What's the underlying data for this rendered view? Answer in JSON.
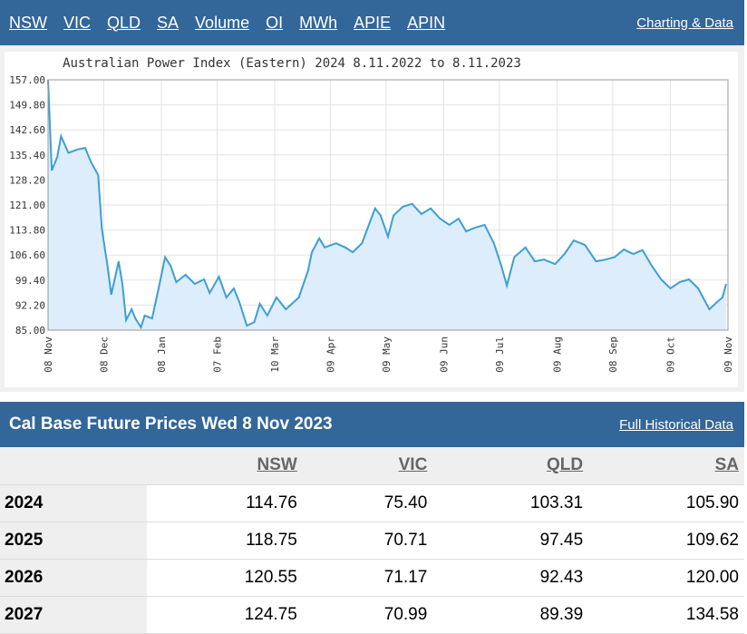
{
  "nav": {
    "links": [
      "NSW",
      "VIC",
      "QLD",
      "SA",
      "Volume",
      "OI",
      "MWh",
      "APIE",
      "APIN"
    ],
    "right": "Charting & Data"
  },
  "chart_data": {
    "type": "line",
    "title": "Australian Power Index (Eastern) 2024 8.11.2022 to 8.11.2023",
    "x": [
      0,
      2,
      5,
      7,
      11,
      16,
      20,
      23,
      27,
      29,
      32,
      34,
      38,
      40,
      42,
      45,
      47,
      50,
      52,
      56,
      60,
      63,
      66,
      69,
      74,
      79,
      84,
      87,
      92,
      96,
      100,
      103,
      107,
      111,
      114,
      118,
      123,
      128,
      135,
      140,
      142,
      146,
      149,
      155,
      160,
      164,
      169,
      176,
      179,
      183,
      186,
      191,
      196,
      201,
      206,
      211,
      216,
      221,
      225,
      230,
      235,
      240,
      244,
      247,
      251,
      257,
      262,
      267,
      273,
      278,
      283,
      289,
      295,
      300,
      305,
      310,
      315,
      320,
      325,
      330,
      335,
      340,
      345,
      350,
      356,
      360,
      363,
      365
    ],
    "series": [
      {
        "color": "#3d9fd4",
        "fill": "#ddedfb",
        "values": [
          157,
          130.9,
          134.8,
          140.8,
          136,
          137,
          137.4,
          133.5,
          129.6,
          114,
          103.5,
          95.2,
          104.8,
          98.3,
          87.9,
          91,
          88.4,
          85.8,
          89.2,
          88.4,
          98.3,
          106,
          103.5,
          98.8,
          100.9,
          98.3,
          99.6,
          95.7,
          100.4,
          94.4,
          97,
          93,
          86.3,
          87.3,
          92.6,
          89.2,
          94.4,
          91,
          94.4,
          102.2,
          107.4,
          111.4,
          108.8,
          110,
          108.8,
          107.4,
          110,
          120,
          118,
          111.9,
          118,
          120.5,
          121.3,
          118.4,
          120,
          117.1,
          115.3,
          117.1,
          113.4,
          114.5,
          115.3,
          110,
          103.5,
          97.8,
          106,
          108.8,
          104.8,
          105.3,
          104,
          106.9,
          110.8,
          109.5,
          104.8,
          105.3,
          106,
          108.2,
          106.9,
          108,
          103.5,
          99.6,
          97,
          98.8,
          99.6,
          97,
          91,
          93,
          94.4,
          98.3
        ]
      }
    ],
    "xlim": [
      0,
      366
    ],
    "xticks": [
      {
        "value": 0,
        "label": "08 Nov"
      },
      {
        "value": 30,
        "label": "08 Dec"
      },
      {
        "value": 61,
        "label": "08 Jan"
      },
      {
        "value": 91,
        "label": "07 Feb"
      },
      {
        "value": 122,
        "label": "10 Mar"
      },
      {
        "value": 152,
        "label": "09 Apr"
      },
      {
        "value": 182,
        "label": "09 May"
      },
      {
        "value": 213,
        "label": "09 Jun"
      },
      {
        "value": 243,
        "label": "09 Jul"
      },
      {
        "value": 274,
        "label": "09 Aug"
      },
      {
        "value": 304,
        "label": "08 Sep"
      },
      {
        "value": 335,
        "label": "09 Oct"
      },
      {
        "value": 366,
        "label": "09 Nov"
      }
    ],
    "ylim": [
      85,
      157
    ],
    "yticks": [
      {
        "value": 85,
        "label": "85.00"
      },
      {
        "value": 92.2,
        "label": "92.20"
      },
      {
        "value": 99.4,
        "label": "99.40"
      },
      {
        "value": 106.6,
        "label": "106.60"
      },
      {
        "value": 113.8,
        "label": "113.80"
      },
      {
        "value": 121,
        "label": "121.00"
      },
      {
        "value": 128.2,
        "label": "128.20"
      },
      {
        "value": 135.4,
        "label": "135.40"
      },
      {
        "value": 142.6,
        "label": "142.60"
      },
      {
        "value": 149.8,
        "label": "149.80"
      },
      {
        "value": 157,
        "label": "157.00"
      }
    ],
    "grid": true
  },
  "table": {
    "title": "Cal Base Future Prices Wed 8 Nov 2023",
    "link": "Full Historical Data",
    "columns": [
      "NSW",
      "VIC",
      "QLD",
      "SA"
    ],
    "rows": [
      [
        "2024",
        "114.76",
        "75.40",
        "103.31",
        "105.90"
      ],
      [
        "2025",
        "118.75",
        "70.71",
        "97.45",
        "109.62"
      ],
      [
        "2026",
        "120.55",
        "71.17",
        "92.43",
        "120.00"
      ],
      [
        "2027",
        "124.75",
        "70.99",
        "89.39",
        "134.58"
      ]
    ]
  }
}
